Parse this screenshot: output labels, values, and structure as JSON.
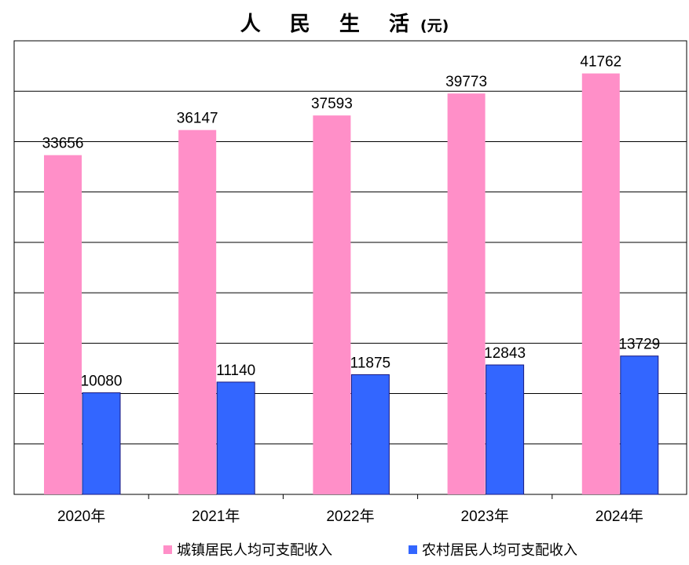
{
  "chart_data": {
    "type": "bar",
    "title": "人 民 生 活",
    "title_unit": "(元)",
    "categories": [
      "2020年",
      "2021年",
      "2022年",
      "2023年",
      "2024年"
    ],
    "series": [
      {
        "name": "城镇居民人均可支配收入",
        "color": "#ff8fc8",
        "values": [
          33656,
          36147,
          37593,
          39773,
          41762
        ]
      },
      {
        "name": "农村居民人均可支配收入",
        "color": "#3366ff",
        "values": [
          10080,
          11140,
          11875,
          12843,
          13729
        ]
      }
    ],
    "ylim": [
      0,
      45000
    ],
    "grid": true,
    "legend_position": "bottom"
  }
}
